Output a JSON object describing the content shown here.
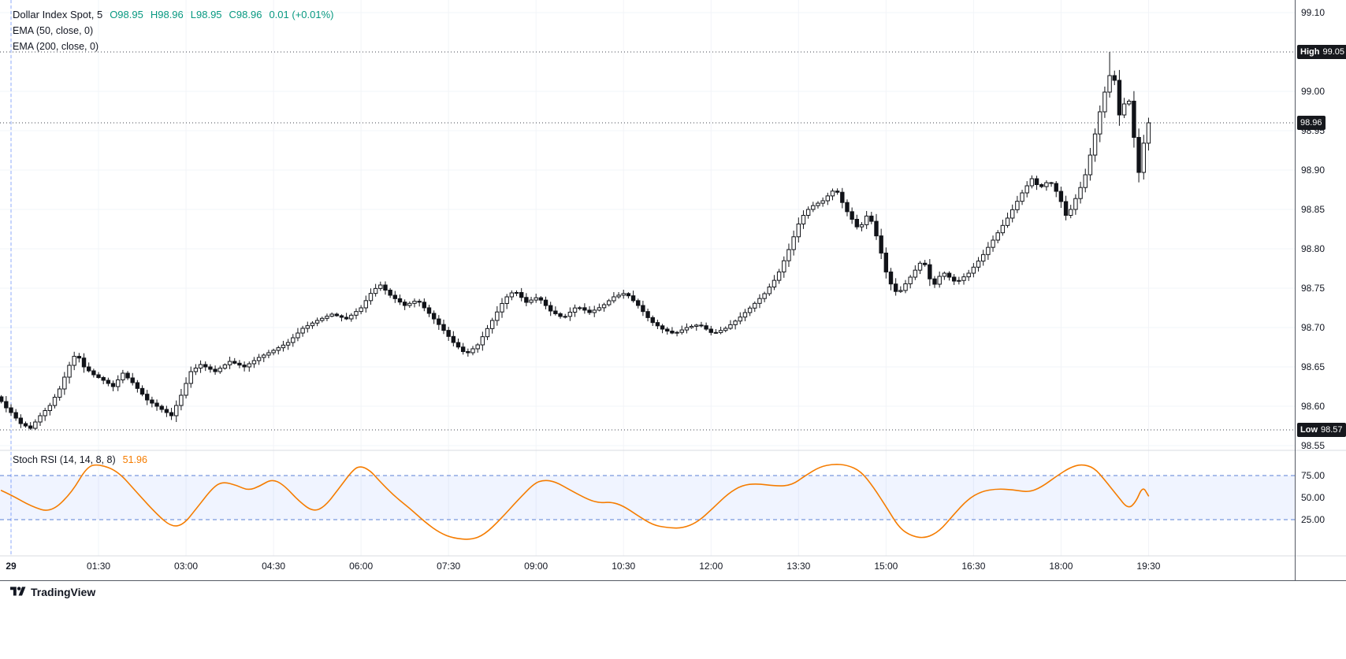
{
  "legend": {
    "symbol_title": "Dollar Index Spot, 5",
    "ohlc": {
      "open": "O98.95",
      "high": "H98.96",
      "low": "L98.95",
      "close": "C98.96",
      "change": "0.01 (+0.01%)"
    },
    "indicators": [
      "EMA (50, close, 0)",
      "EMA (200, close, 0)"
    ]
  },
  "stoch_legend": {
    "title": "Stoch RSI (14, 14, 8, 8)",
    "value": "51.96"
  },
  "branding": {
    "name": "TradingView"
  },
  "colors": {
    "candle": "#111318",
    "up": "#ffffff",
    "accent_blue": "#2962ff",
    "green": "#089981",
    "stoch_orange": "#f57c00",
    "stoch_band_fill": "rgba(41,98,255,0.07)",
    "stoch_band_line": "#5a7fd6",
    "badge_bg": "#16181d",
    "dotted_line": "#3f434c",
    "grid": "#f2f4f8",
    "separator_light": "#d8dbe0",
    "separator_dark": "#555a64"
  },
  "chart_data": {
    "type": "candlestick",
    "symbol": "Dollar Index Spot",
    "interval_minutes": 5,
    "price_range": [
      98.55,
      99.1
    ],
    "session_high": 99.05,
    "session_low": 98.57,
    "last_close": 98.96,
    "last_candle": {
      "open": 98.95,
      "high": 98.96,
      "low": 98.95,
      "close": 98.96,
      "change": 0.01,
      "change_pct": 0.01
    },
    "candles_minutes_start": -10,
    "price_ticks": [
      {
        "label": "99.10",
        "value": 99.1
      },
      {
        "label": "99.00",
        "value": 99.0
      },
      {
        "label": "98.95",
        "value": 98.95
      },
      {
        "label": "98.90",
        "value": 98.9
      },
      {
        "label": "98.85",
        "value": 98.85
      },
      {
        "label": "98.80",
        "value": 98.8
      },
      {
        "label": "98.75",
        "value": 98.75
      },
      {
        "label": "98.70",
        "value": 98.7
      },
      {
        "label": "98.65",
        "value": 98.65
      },
      {
        "label": "98.60",
        "value": 98.6
      },
      {
        "label": "98.55",
        "value": 98.55
      }
    ],
    "price_badges": [
      {
        "word": "High",
        "text": "99.05",
        "value": 99.05,
        "name": "high-price-badge"
      },
      {
        "word": "",
        "text": "98.96",
        "value": 98.96,
        "name": "last-price-badge"
      },
      {
        "word": "Low",
        "text": "98.57",
        "value": 98.57,
        "name": "low-price-badge"
      }
    ],
    "time_ticks": [
      {
        "label": "29",
        "minute": 0,
        "bold": true
      },
      {
        "label": "01:30",
        "minute": 90
      },
      {
        "label": "03:00",
        "minute": 180
      },
      {
        "label": "04:30",
        "minute": 270
      },
      {
        "label": "06:00",
        "minute": 360
      },
      {
        "label": "07:30",
        "minute": 450
      },
      {
        "label": "09:00",
        "minute": 540
      },
      {
        "label": "10:30",
        "minute": 630
      },
      {
        "label": "12:00",
        "minute": 720
      },
      {
        "label": "13:30",
        "minute": 810
      },
      {
        "label": "15:00",
        "minute": 900
      },
      {
        "label": "16:30",
        "minute": 990
      },
      {
        "label": "18:00",
        "minute": 1080
      },
      {
        "label": "19:30",
        "minute": 1170
      }
    ],
    "close_path": [
      [
        -10,
        98.606
      ],
      [
        -5,
        98.598
      ],
      [
        0,
        98.592
      ],
      [
        10,
        98.578
      ],
      [
        20,
        98.572
      ],
      [
        30,
        98.588
      ],
      [
        40,
        98.601
      ],
      [
        50,
        98.622
      ],
      [
        60,
        98.652
      ],
      [
        67,
        98.668
      ],
      [
        75,
        98.65
      ],
      [
        85,
        98.64
      ],
      [
        95,
        98.633
      ],
      [
        105,
        98.625
      ],
      [
        115,
        98.642
      ],
      [
        125,
        98.63
      ],
      [
        140,
        98.608
      ],
      [
        155,
        98.596
      ],
      [
        165,
        98.588
      ],
      [
        175,
        98.614
      ],
      [
        185,
        98.644
      ],
      [
        195,
        98.653
      ],
      [
        210,
        98.644
      ],
      [
        225,
        98.657
      ],
      [
        240,
        98.65
      ],
      [
        255,
        98.662
      ],
      [
        270,
        98.671
      ],
      [
        285,
        98.681
      ],
      [
        300,
        98.699
      ],
      [
        315,
        98.709
      ],
      [
        330,
        98.717
      ],
      [
        345,
        98.711
      ],
      [
        360,
        98.725
      ],
      [
        372,
        98.747
      ],
      [
        380,
        98.754
      ],
      [
        390,
        98.741
      ],
      [
        405,
        98.728
      ],
      [
        418,
        98.735
      ],
      [
        430,
        98.718
      ],
      [
        442,
        98.701
      ],
      [
        455,
        98.681
      ],
      [
        468,
        98.666
      ],
      [
        480,
        98.678
      ],
      [
        495,
        98.709
      ],
      [
        508,
        98.737
      ],
      [
        518,
        98.747
      ],
      [
        530,
        98.732
      ],
      [
        542,
        98.739
      ],
      [
        555,
        98.721
      ],
      [
        568,
        98.712
      ],
      [
        582,
        98.727
      ],
      [
        595,
        98.719
      ],
      [
        608,
        98.727
      ],
      [
        620,
        98.739
      ],
      [
        632,
        98.744
      ],
      [
        645,
        98.728
      ],
      [
        658,
        98.708
      ],
      [
        670,
        98.698
      ],
      [
        682,
        98.692
      ],
      [
        695,
        98.7
      ],
      [
        708,
        98.704
      ],
      [
        722,
        98.692
      ],
      [
        735,
        98.699
      ],
      [
        748,
        98.711
      ],
      [
        762,
        98.727
      ],
      [
        775,
        98.743
      ],
      [
        788,
        98.765
      ],
      [
        800,
        98.799
      ],
      [
        812,
        98.838
      ],
      [
        822,
        98.853
      ],
      [
        835,
        98.861
      ],
      [
        848,
        98.877
      ],
      [
        858,
        98.851
      ],
      [
        872,
        98.824
      ],
      [
        882,
        98.846
      ],
      [
        892,
        98.809
      ],
      [
        902,
        98.761
      ],
      [
        912,
        98.742
      ],
      [
        925,
        98.764
      ],
      [
        938,
        98.787
      ],
      [
        948,
        98.751
      ],
      [
        958,
        98.771
      ],
      [
        972,
        98.757
      ],
      [
        985,
        98.769
      ],
      [
        998,
        98.789
      ],
      [
        1010,
        98.811
      ],
      [
        1025,
        98.839
      ],
      [
        1040,
        98.871
      ],
      [
        1050,
        98.889
      ],
      [
        1058,
        98.877
      ],
      [
        1068,
        98.887
      ],
      [
        1078,
        98.867
      ],
      [
        1086,
        98.839
      ],
      [
        1094,
        98.861
      ],
      [
        1104,
        98.889
      ],
      [
        1112,
        98.929
      ],
      [
        1120,
        98.974
      ],
      [
        1127,
        99.009
      ],
      [
        1133,
        99.031
      ],
      [
        1137,
        98.997
      ],
      [
        1141,
        98.961
      ],
      [
        1145,
        98.984
      ],
      [
        1149,
        98.997
      ],
      [
        1153,
        98.959
      ],
      [
        1157,
        98.924
      ],
      [
        1160,
        98.897
      ],
      [
        1164,
        98.929
      ],
      [
        1170,
        98.96
      ]
    ],
    "indicator": {
      "name": "Stoch RSI",
      "params": [
        14,
        14,
        8,
        8
      ],
      "last_value": 51.96,
      "range": [
        0,
        100
      ],
      "bands": [
        75,
        25
      ],
      "band_ticks": [
        {
          "label": "75.00",
          "value": 75
        },
        {
          "label": "50.00",
          "value": 50
        },
        {
          "label": "25.00",
          "value": 25
        }
      ],
      "path": [
        [
          -10,
          58
        ],
        [
          0,
          53
        ],
        [
          21,
          40
        ],
        [
          41,
          33
        ],
        [
          62,
          55
        ],
        [
          78,
          85
        ],
        [
          90,
          88
        ],
        [
          110,
          80
        ],
        [
          130,
          55
        ],
        [
          151,
          30
        ],
        [
          165,
          17
        ],
        [
          177,
          19
        ],
        [
          191,
          38
        ],
        [
          208,
          62
        ],
        [
          218,
          68
        ],
        [
          232,
          64
        ],
        [
          244,
          58
        ],
        [
          256,
          63
        ],
        [
          268,
          71
        ],
        [
          280,
          65
        ],
        [
          297,
          45
        ],
        [
          311,
          34
        ],
        [
          323,
          40
        ],
        [
          337,
          60
        ],
        [
          352,
          82
        ],
        [
          360,
          86
        ],
        [
          370,
          80
        ],
        [
          378,
          70
        ],
        [
          394,
          52
        ],
        [
          410,
          38
        ],
        [
          426,
          22
        ],
        [
          441,
          10
        ],
        [
          455,
          4
        ],
        [
          473,
          2
        ],
        [
          487,
          8
        ],
        [
          503,
          25
        ],
        [
          522,
          48
        ],
        [
          538,
          66
        ],
        [
          548,
          70
        ],
        [
          560,
          68
        ],
        [
          576,
          58
        ],
        [
          595,
          47
        ],
        [
          606,
          44
        ],
        [
          617,
          45
        ],
        [
          629,
          41
        ],
        [
          644,
          30
        ],
        [
          660,
          19
        ],
        [
          674,
          16
        ],
        [
          690,
          15
        ],
        [
          706,
          22
        ],
        [
          722,
          38
        ],
        [
          738,
          55
        ],
        [
          752,
          64
        ],
        [
          767,
          66
        ],
        [
          787,
          63
        ],
        [
          803,
          64
        ],
        [
          817,
          75
        ],
        [
          832,
          85
        ],
        [
          846,
          88
        ],
        [
          860,
          87
        ],
        [
          874,
          80
        ],
        [
          887,
          62
        ],
        [
          901,
          38
        ],
        [
          914,
          15
        ],
        [
          927,
          6
        ],
        [
          941,
          4
        ],
        [
          955,
          12
        ],
        [
          969,
          30
        ],
        [
          984,
          48
        ],
        [
          998,
          57
        ],
        [
          1014,
          60
        ],
        [
          1030,
          59
        ],
        [
          1047,
          56
        ],
        [
          1060,
          62
        ],
        [
          1075,
          74
        ],
        [
          1089,
          84
        ],
        [
          1101,
          88
        ],
        [
          1114,
          84
        ],
        [
          1125,
          70
        ],
        [
          1138,
          52
        ],
        [
          1149,
          37
        ],
        [
          1157,
          45
        ],
        [
          1164,
          63
        ],
        [
          1170,
          51.96
        ]
      ]
    }
  }
}
